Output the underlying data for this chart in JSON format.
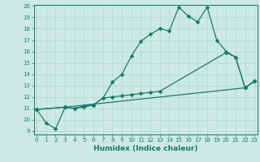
{
  "xlabel": "Humidex (Indice chaleur)",
  "background_color": "#cce9e4",
  "grid_color": "#b0d8d0",
  "line_color": "#1a7a6a",
  "series": [
    {
      "x": [
        0,
        1,
        2,
        3,
        4,
        5,
        6,
        7,
        8,
        9,
        10,
        11,
        12,
        13,
        14,
        15,
        16,
        17,
        18,
        19,
        20,
        21,
        22,
        23
      ],
      "y": [
        10.9,
        9.7,
        9.2,
        11.1,
        11.0,
        11.1,
        11.3,
        11.9,
        13.3,
        14.0,
        15.6,
        16.9,
        17.5,
        18.0,
        17.8,
        19.9,
        19.1,
        18.6,
        19.9,
        17.0,
        16.0,
        15.5,
        12.8,
        13.4
      ]
    },
    {
      "x": [
        0,
        3,
        4,
        5,
        6,
        7,
        8,
        9,
        10,
        11,
        12,
        13,
        20,
        21,
        22,
        23
      ],
      "y": [
        10.9,
        11.1,
        11.0,
        11.2,
        11.3,
        11.9,
        12.0,
        12.1,
        12.2,
        12.3,
        12.4,
        12.5,
        15.9,
        15.5,
        12.8,
        13.4
      ]
    },
    {
      "x": [
        0,
        3,
        22,
        23
      ],
      "y": [
        10.9,
        11.1,
        12.8,
        13.4
      ]
    }
  ],
  "xlim": [
    -0.3,
    23.3
  ],
  "ylim": [
    9,
    20
  ],
  "yticks": [
    9,
    10,
    11,
    12,
    13,
    14,
    15,
    16,
    17,
    18,
    19,
    20
  ],
  "xticks": [
    0,
    1,
    2,
    3,
    4,
    5,
    6,
    7,
    8,
    9,
    10,
    11,
    12,
    13,
    14,
    15,
    16,
    17,
    18,
    19,
    20,
    21,
    22,
    23
  ],
  "tick_fontsize": 5.0,
  "xlabel_fontsize": 6.5,
  "markersize": 2.5,
  "linewidth": 0.9
}
